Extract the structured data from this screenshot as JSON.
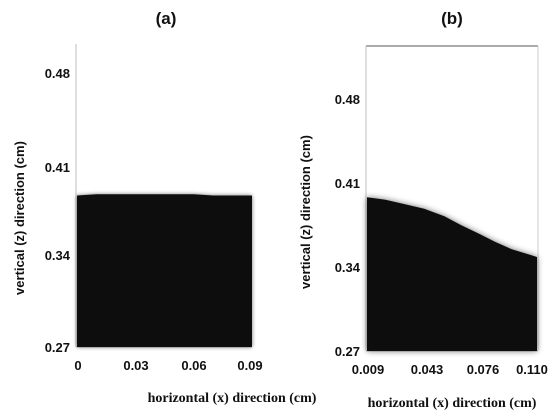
{
  "chart_data": [
    {
      "type": "area",
      "title": "(a)",
      "xlabel": "horizontal (x) direction (cm)",
      "ylabel": "vertical (z) direction (cm)",
      "x_ticks": [
        "0",
        "0.03",
        "0.06",
        "0.09"
      ],
      "y_ticks": [
        "0.27",
        "0.34",
        "0.41",
        "0.48"
      ],
      "xlim": [
        0,
        0.09
      ],
      "ylim": [
        0.27,
        0.5
      ],
      "fill_color": "#0d0d0d",
      "boundary": {
        "x": [
          0,
          0.01,
          0.02,
          0.03,
          0.04,
          0.05,
          0.06,
          0.07,
          0.08,
          0.09
        ],
        "z": [
          0.385,
          0.386,
          0.386,
          0.386,
          0.386,
          0.386,
          0.386,
          0.385,
          0.385,
          0.385
        ]
      }
    },
    {
      "type": "area",
      "title": "(b)",
      "xlabel": "horizontal (x) direction (cm)",
      "ylabel": "vertical (z) direction (cm)",
      "x_ticks": [
        "0.009",
        "0.043",
        "0.076",
        "0.110"
      ],
      "y_ticks": [
        "0.27",
        "0.34",
        "0.41",
        "0.48"
      ],
      "xlim": [
        0.009,
        0.11
      ],
      "ylim": [
        0.27,
        0.51
      ],
      "fill_color": "#0d0d0d",
      "boundary": {
        "x": [
          0.009,
          0.02,
          0.03,
          0.043,
          0.055,
          0.065,
          0.076,
          0.085,
          0.095,
          0.105,
          0.11
        ],
        "z": [
          0.391,
          0.389,
          0.386,
          0.382,
          0.376,
          0.369,
          0.362,
          0.356,
          0.35,
          0.346,
          0.344
        ]
      }
    }
  ]
}
